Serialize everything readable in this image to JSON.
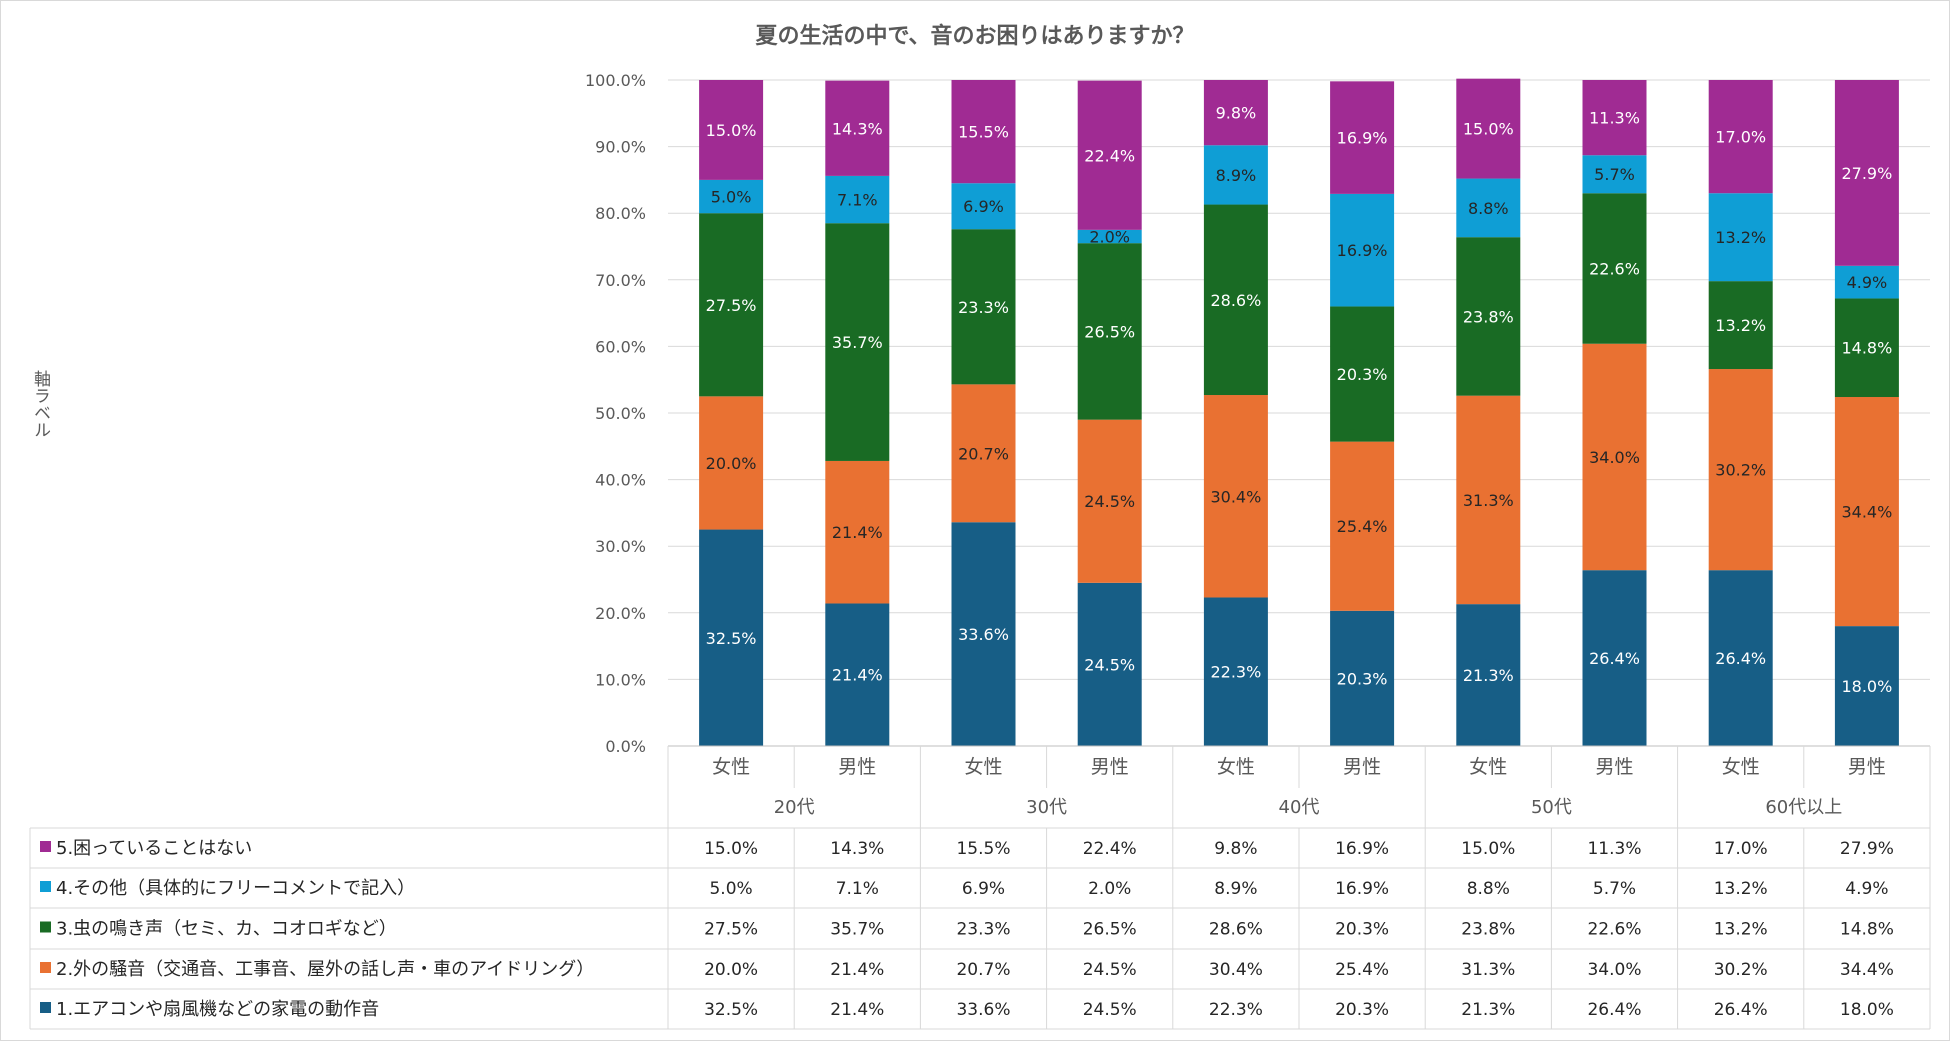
{
  "chart_data": {
    "type": "bar",
    "stacked": true,
    "title": "夏の生活の中で、音のお困りはありますか？",
    "ylabel": "軸ラベル",
    "ylim": [
      0,
      100
    ],
    "yticks": [
      "0.0%",
      "10.0%",
      "20.0%",
      "30.0%",
      "40.0%",
      "50.0%",
      "60.0%",
      "70.0%",
      "80.0%",
      "90.0%",
      "100.0%"
    ],
    "groups": [
      "20代",
      "30代",
      "40代",
      "50代",
      "60代以上"
    ],
    "categories": [
      "女性",
      "男性",
      "女性",
      "男性",
      "女性",
      "男性",
      "女性",
      "男性",
      "女性",
      "男性"
    ],
    "series": [
      {
        "name": "1.エアコンや扇風機などの家電の動作音",
        "color": "#175e86",
        "label_color": "#ffffff",
        "values": [
          32.5,
          21.4,
          33.6,
          24.5,
          22.3,
          20.3,
          21.3,
          26.4,
          26.4,
          18.0
        ],
        "labels": [
          "32.5%",
          "21.4%",
          "33.6%",
          "24.5%",
          "22.3%",
          "20.3%",
          "21.3%",
          "26.4%",
          "26.4%",
          "18.0%"
        ]
      },
      {
        "name": "2.外の騒音（交通音、工事音、屋外の話し声・車のアイドリング）",
        "color": "#e97132",
        "label_color": "#262626",
        "values": [
          20.0,
          21.4,
          20.7,
          24.5,
          30.4,
          25.4,
          31.3,
          34.0,
          30.2,
          34.4
        ],
        "labels": [
          "20.0%",
          "21.4%",
          "20.7%",
          "24.5%",
          "30.4%",
          "25.4%",
          "31.3%",
          "34.0%",
          "30.2%",
          "34.4%"
        ]
      },
      {
        "name": "3.虫の鳴き声（セミ、カ、コオロギなど）",
        "color": "#196b24",
        "label_color": "#ffffff",
        "values": [
          27.5,
          35.7,
          23.3,
          26.5,
          28.6,
          20.3,
          23.8,
          22.6,
          13.2,
          14.8
        ],
        "labels": [
          "27.5%",
          "35.7%",
          "23.3%",
          "26.5%",
          "28.6%",
          "20.3%",
          "23.8%",
          "22.6%",
          "13.2%",
          "14.8%"
        ]
      },
      {
        "name": "4.その他（具体的にフリーコメントで記入）",
        "color": "#0f9ed5",
        "label_color": "#262626",
        "values": [
          5.0,
          7.1,
          6.9,
          2.0,
          8.9,
          16.9,
          8.8,
          5.7,
          13.2,
          4.9
        ],
        "labels": [
          "5.0%",
          "7.1%",
          "6.9%",
          "2.0%",
          "8.9%",
          "16.9%",
          "8.8%",
          "5.7%",
          "13.2%",
          "4.9%"
        ]
      },
      {
        "name": "5.困っていることはない",
        "color": "#a02b93",
        "label_color": "#ffffff",
        "values": [
          15.0,
          14.3,
          15.5,
          22.4,
          9.8,
          16.9,
          15.0,
          11.3,
          17.0,
          27.9
        ],
        "labels": [
          "15.0%",
          "14.3%",
          "15.5%",
          "22.4%",
          "9.8%",
          "16.9%",
          "15.0%",
          "11.3%",
          "17.0%",
          "27.9%"
        ]
      }
    ],
    "table_row_order": [
      4,
      3,
      2,
      1,
      0
    ],
    "grid": true
  }
}
